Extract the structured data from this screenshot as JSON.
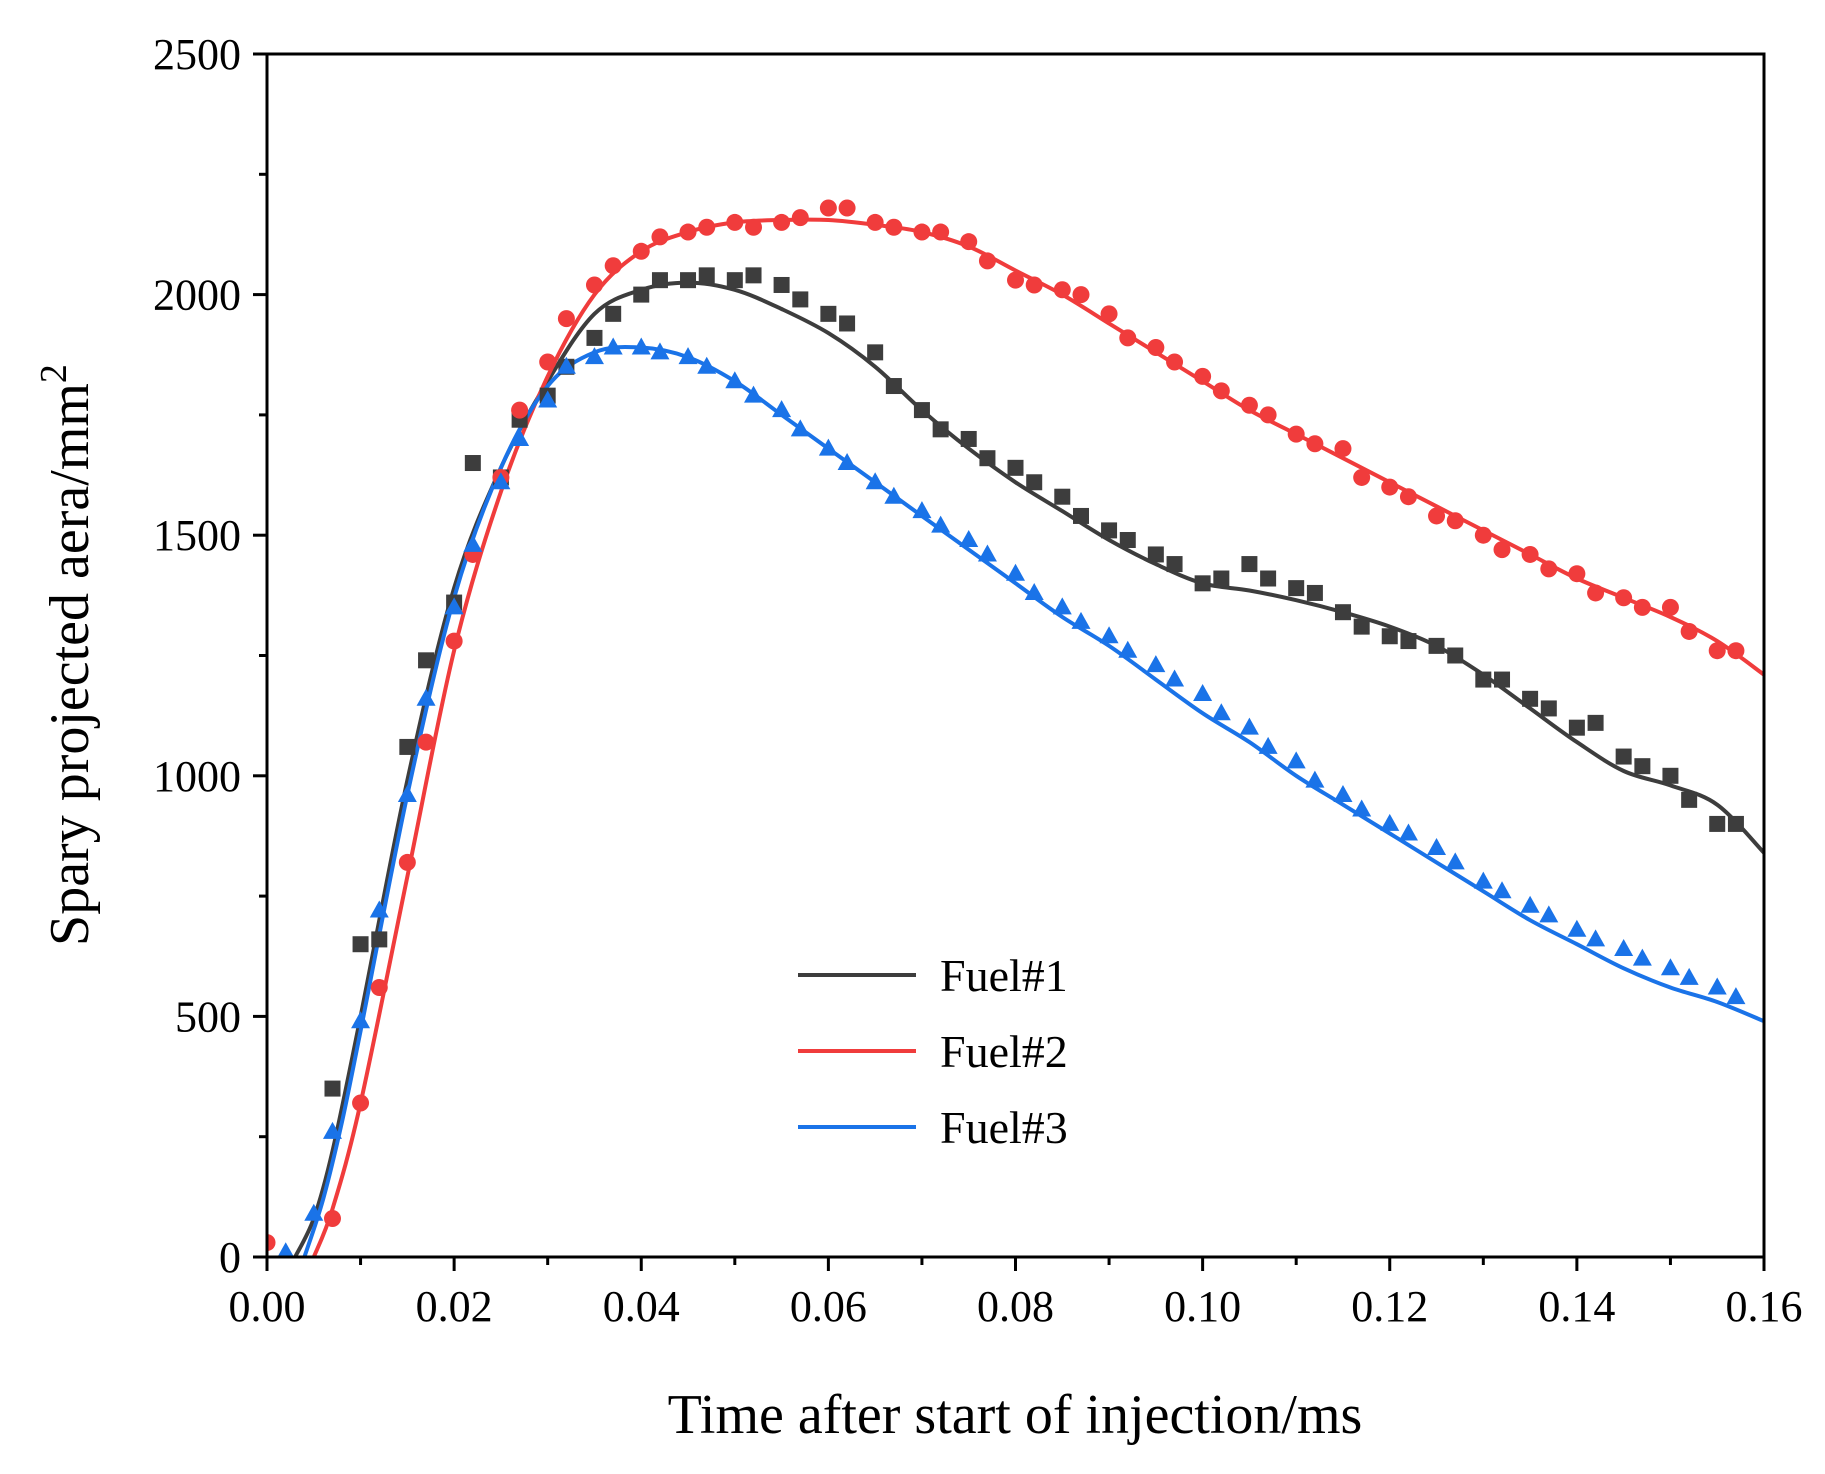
{
  "chart_data": {
    "type": "line",
    "title": "",
    "xlabel": "Time after start of injection/ms",
    "ylabel": "Spary projected aera/mm",
    "ylabel_superscript": "2",
    "xlim": [
      0,
      0.16
    ],
    "ylim": [
      0,
      2500
    ],
    "x_ticks": [
      0,
      0.02,
      0.04,
      0.06,
      0.08,
      0.1,
      0.12,
      0.14,
      0.16
    ],
    "x_tick_labels": [
      "0.00",
      "0.02",
      "0.04",
      "0.06",
      "0.08",
      "0.10",
      "0.12",
      "0.14",
      "0.16"
    ],
    "y_ticks": [
      0,
      500,
      1000,
      1500,
      2000,
      2500
    ],
    "y_tick_labels": [
      "0",
      "500",
      "1000",
      "1500",
      "2000",
      "2500"
    ],
    "grid": false,
    "legend_position": "center",
    "series": [
      {
        "name": "Fuel#1",
        "color": "#3d3d3d",
        "marker": "square",
        "fit": {
          "x": [
            0.003,
            0.005,
            0.007,
            0.01,
            0.015,
            0.02,
            0.025,
            0.03,
            0.035,
            0.04,
            0.045,
            0.05,
            0.055,
            0.06,
            0.065,
            0.07,
            0.075,
            0.08,
            0.085,
            0.09,
            0.095,
            0.1,
            0.105,
            0.11,
            0.115,
            0.12,
            0.125,
            0.13,
            0.135,
            0.14,
            0.145,
            0.15,
            0.155,
            0.16
          ],
          "y": [
            0,
            80,
            220,
            500,
            990,
            1390,
            1640,
            1820,
            1960,
            2010,
            2025,
            2010,
            1970,
            1920,
            1850,
            1760,
            1680,
            1610,
            1550,
            1490,
            1440,
            1400,
            1385,
            1365,
            1340,
            1310,
            1270,
            1210,
            1140,
            1070,
            1010,
            980,
            940,
            840
          ]
        },
        "points": {
          "x": [
            0.007,
            0.01,
            0.012,
            0.015,
            0.017,
            0.02,
            0.022,
            0.025,
            0.027,
            0.03,
            0.032,
            0.035,
            0.037,
            0.04,
            0.042,
            0.045,
            0.047,
            0.05,
            0.052,
            0.055,
            0.057,
            0.06,
            0.062,
            0.065,
            0.067,
            0.07,
            0.072,
            0.075,
            0.077,
            0.08,
            0.082,
            0.085,
            0.087,
            0.09,
            0.092,
            0.095,
            0.097,
            0.1,
            0.102,
            0.105,
            0.107,
            0.11,
            0.112,
            0.115,
            0.117,
            0.12,
            0.122,
            0.125,
            0.127,
            0.13,
            0.132,
            0.135,
            0.137,
            0.14,
            0.142,
            0.145,
            0.147,
            0.15,
            0.152,
            0.155,
            0.157
          ],
          "y": [
            350,
            650,
            660,
            1060,
            1240,
            1360,
            1650,
            1620,
            1740,
            1790,
            1850,
            1910,
            1960,
            2000,
            2030,
            2030,
            2040,
            2030,
            2040,
            2020,
            1990,
            1960,
            1940,
            1880,
            1810,
            1760,
            1720,
            1700,
            1660,
            1640,
            1610,
            1580,
            1540,
            1510,
            1490,
            1460,
            1440,
            1400,
            1410,
            1440,
            1410,
            1390,
            1380,
            1340,
            1310,
            1290,
            1280,
            1270,
            1250,
            1200,
            1200,
            1160,
            1140,
            1100,
            1110,
            1040,
            1020,
            1000,
            950,
            900,
            900
          ]
        }
      },
      {
        "name": "Fuel#2",
        "color": "#f03c3c",
        "marker": "circle",
        "fit": {
          "x": [
            0.005,
            0.007,
            0.01,
            0.015,
            0.02,
            0.025,
            0.03,
            0.035,
            0.04,
            0.045,
            0.05,
            0.055,
            0.06,
            0.065,
            0.07,
            0.075,
            0.08,
            0.085,
            0.09,
            0.095,
            0.1,
            0.105,
            0.11,
            0.115,
            0.12,
            0.125,
            0.13,
            0.135,
            0.14,
            0.145,
            0.15,
            0.155,
            0.16
          ],
          "y": [
            0,
            100,
            320,
            790,
            1260,
            1590,
            1830,
            2000,
            2090,
            2130,
            2150,
            2155,
            2155,
            2145,
            2130,
            2100,
            2050,
            2000,
            1940,
            1880,
            1820,
            1760,
            1710,
            1660,
            1610,
            1560,
            1510,
            1460,
            1410,
            1370,
            1330,
            1280,
            1210
          ]
        },
        "points": {
          "x": [
            0.0,
            0.007,
            0.01,
            0.012,
            0.015,
            0.017,
            0.02,
            0.022,
            0.025,
            0.027,
            0.03,
            0.032,
            0.035,
            0.037,
            0.04,
            0.042,
            0.045,
            0.047,
            0.05,
            0.052,
            0.055,
            0.057,
            0.06,
            0.062,
            0.065,
            0.067,
            0.07,
            0.072,
            0.075,
            0.077,
            0.08,
            0.082,
            0.085,
            0.087,
            0.09,
            0.092,
            0.095,
            0.097,
            0.1,
            0.102,
            0.105,
            0.107,
            0.11,
            0.112,
            0.115,
            0.117,
            0.12,
            0.122,
            0.125,
            0.127,
            0.13,
            0.132,
            0.135,
            0.137,
            0.14,
            0.142,
            0.145,
            0.147,
            0.15,
            0.152,
            0.155,
            0.157
          ],
          "y": [
            30,
            80,
            320,
            560,
            820,
            1070,
            1280,
            1460,
            1620,
            1760,
            1860,
            1950,
            2020,
            2060,
            2090,
            2120,
            2130,
            2140,
            2150,
            2140,
            2150,
            2160,
            2180,
            2180,
            2150,
            2140,
            2130,
            2130,
            2110,
            2070,
            2030,
            2020,
            2010,
            2000,
            1960,
            1910,
            1890,
            1860,
            1830,
            1800,
            1770,
            1750,
            1710,
            1690,
            1680,
            1620,
            1600,
            1580,
            1540,
            1530,
            1500,
            1470,
            1460,
            1430,
            1420,
            1380,
            1370,
            1350,
            1350,
            1300,
            1260,
            1260
          ]
        }
      },
      {
        "name": "Fuel#3",
        "color": "#1a73e8",
        "marker": "triangle",
        "fit": {
          "x": [
            0.004,
            0.006,
            0.008,
            0.01,
            0.015,
            0.02,
            0.025,
            0.03,
            0.035,
            0.04,
            0.045,
            0.05,
            0.055,
            0.06,
            0.065,
            0.07,
            0.075,
            0.08,
            0.085,
            0.09,
            0.095,
            0.1,
            0.105,
            0.11,
            0.115,
            0.12,
            0.125,
            0.13,
            0.135,
            0.14,
            0.145,
            0.15,
            0.155,
            0.16
          ],
          "y": [
            0,
            120,
            280,
            470,
            960,
            1370,
            1640,
            1810,
            1880,
            1890,
            1870,
            1820,
            1750,
            1680,
            1610,
            1540,
            1470,
            1400,
            1330,
            1270,
            1200,
            1130,
            1070,
            1000,
            940,
            880,
            820,
            760,
            700,
            650,
            600,
            560,
            530,
            490
          ]
        },
        "points": {
          "x": [
            0.002,
            0.005,
            0.007,
            0.01,
            0.012,
            0.015,
            0.017,
            0.02,
            0.022,
            0.025,
            0.027,
            0.03,
            0.032,
            0.035,
            0.037,
            0.04,
            0.042,
            0.045,
            0.047,
            0.05,
            0.052,
            0.055,
            0.057,
            0.06,
            0.062,
            0.065,
            0.067,
            0.07,
            0.072,
            0.075,
            0.077,
            0.08,
            0.082,
            0.085,
            0.087,
            0.09,
            0.092,
            0.095,
            0.097,
            0.1,
            0.102,
            0.105,
            0.107,
            0.11,
            0.112,
            0.115,
            0.117,
            0.12,
            0.122,
            0.125,
            0.127,
            0.13,
            0.132,
            0.135,
            0.137,
            0.14,
            0.142,
            0.145,
            0.147,
            0.15,
            0.152,
            0.155,
            0.157
          ],
          "y": [
            10,
            90,
            260,
            490,
            720,
            960,
            1160,
            1350,
            1480,
            1610,
            1700,
            1780,
            1850,
            1870,
            1890,
            1890,
            1880,
            1870,
            1850,
            1820,
            1790,
            1760,
            1720,
            1680,
            1650,
            1610,
            1580,
            1550,
            1520,
            1490,
            1460,
            1420,
            1380,
            1350,
            1320,
            1290,
            1260,
            1230,
            1200,
            1170,
            1130,
            1100,
            1060,
            1030,
            990,
            960,
            930,
            900,
            880,
            850,
            820,
            780,
            760,
            730,
            710,
            680,
            660,
            640,
            620,
            600,
            580,
            560,
            540
          ]
        }
      }
    ]
  }
}
